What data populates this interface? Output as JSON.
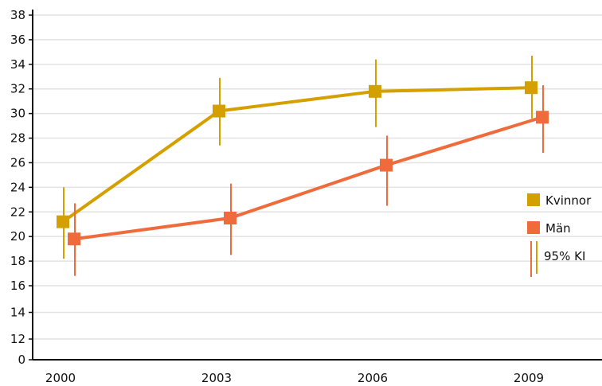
{
  "chart_data": {
    "type": "line",
    "x": [
      "2000",
      "2003",
      "2006",
      "2009"
    ],
    "y_ticks": [
      "0",
      "12",
      "14",
      "16",
      "18",
      "20",
      "22",
      "24",
      "26",
      "28",
      "30",
      "32",
      "34",
      "36",
      "38"
    ],
    "axis_break": "y between 0 and 12",
    "grid": "horizontal",
    "series": [
      {
        "name": "Kvinnor",
        "color": "#D4A000",
        "values": [
          21.2,
          30.2,
          31.8,
          32.1
        ],
        "ci_low": [
          18.2,
          27.4,
          28.9,
          29.6
        ],
        "ci_high": [
          24.0,
          32.9,
          34.4,
          34.7
        ]
      },
      {
        "name": "Män",
        "color": "#EF6B3B",
        "values": [
          19.8,
          21.5,
          25.8,
          29.7
        ],
        "ci_low": [
          16.8,
          18.5,
          22.5,
          26.8
        ],
        "ci_high": [
          22.7,
          24.3,
          28.2,
          32.3
        ]
      }
    ],
    "legend": {
      "placement": "right",
      "items": [
        "Kvinnor",
        "Män"
      ],
      "ci_label": "95% KI"
    }
  }
}
